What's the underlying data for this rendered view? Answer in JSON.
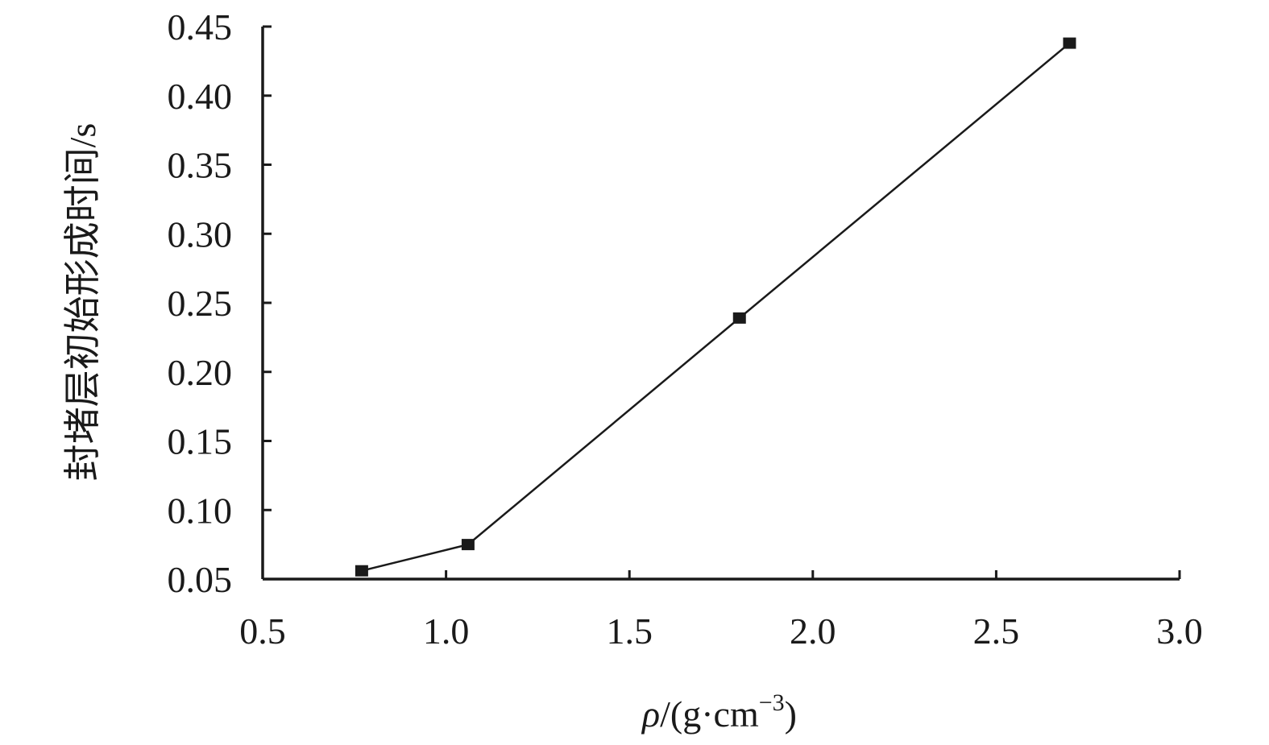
{
  "chart_data": {
    "type": "line",
    "title": "",
    "xlabel": {
      "symbol": "ρ",
      "text": "/(g·cm",
      "superscript": "−3",
      "closing": ")"
    },
    "ylabel": "封堵层初始形成时间/s",
    "xlim": [
      0.5,
      3.0
    ],
    "ylim": [
      0.05,
      0.45
    ],
    "xticks": [
      "0.5",
      "1.0",
      "1.5",
      "2.0",
      "2.5",
      "3.0"
    ],
    "yticks": [
      "0.05",
      "0.10",
      "0.15",
      "0.20",
      "0.25",
      "0.30",
      "0.35",
      "0.40",
      "0.45"
    ],
    "grid": false,
    "marker": "square",
    "series": [
      {
        "x": [
          0.77,
          1.06,
          1.8,
          2.7
        ],
        "y": [
          0.056,
          0.075,
          0.239,
          0.438
        ]
      }
    ],
    "colors": {
      "line": "#1a1a1a",
      "marker": "#1a1a1a",
      "axis": "#1a1a1a"
    }
  }
}
